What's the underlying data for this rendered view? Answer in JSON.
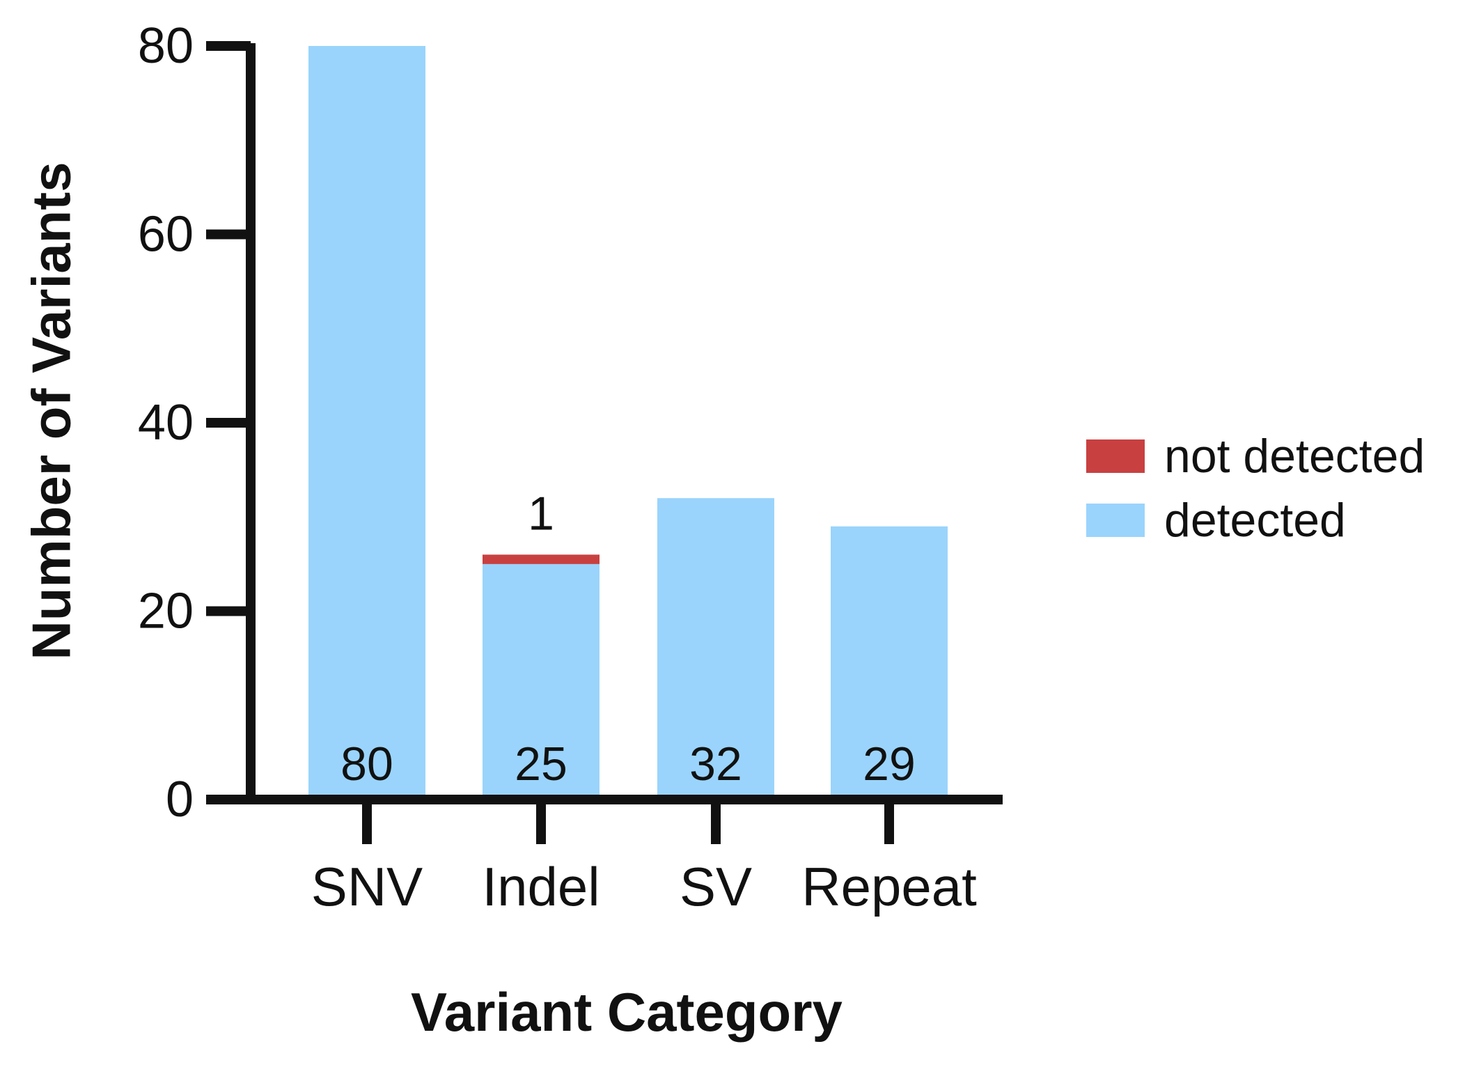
{
  "chart_data": {
    "type": "bar",
    "stacked": true,
    "categories": [
      "SNV",
      "Indel",
      "SV",
      "Repeat"
    ],
    "series": [
      {
        "name": "detected",
        "values": [
          80,
          25,
          32,
          29
        ],
        "color": "#9ad4fc"
      },
      {
        "name": "not detected",
        "values": [
          0,
          1,
          0,
          0
        ],
        "color": "#c94040"
      }
    ],
    "data_labels": {
      "detected": [
        "80",
        "25",
        "32",
        "29"
      ],
      "not detected": [
        "",
        "1",
        "",
        ""
      ]
    },
    "title": "",
    "xlabel": "Variant Category",
    "ylabel": "Number of Variants",
    "ylim": [
      0,
      80
    ],
    "yticks": [
      0,
      20,
      40,
      60,
      80
    ],
    "grid": false,
    "legend": {
      "position": "right",
      "entries": [
        {
          "label": "not detected",
          "color": "#c94040"
        },
        {
          "label": "detected",
          "color": "#9ad4fc"
        }
      ]
    },
    "axis_color": "#111111"
  }
}
